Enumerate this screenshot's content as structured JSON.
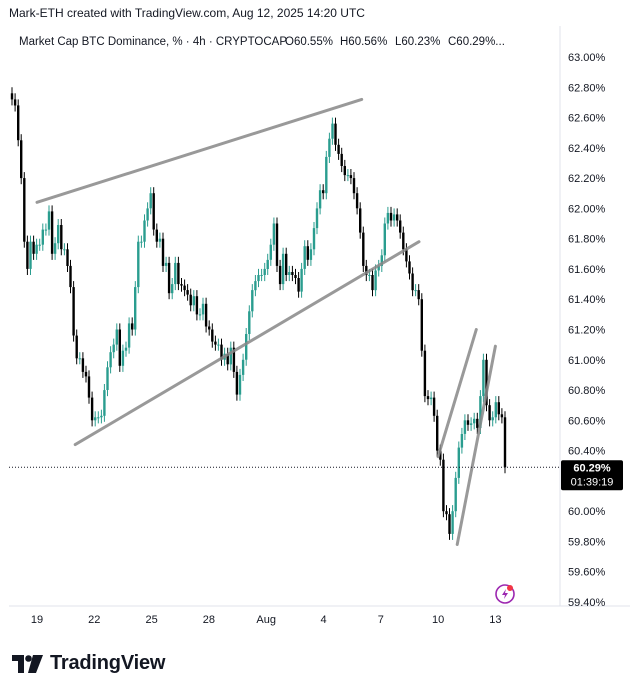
{
  "credit": "Mark-ETH created with TradingView.com, Aug 12, 2025 14:20 UTC",
  "brand": "TradingView",
  "chart_data": {
    "type": "candlestick",
    "title": "Market Cap BTC Dominance, % · 4h · CRYPTOCAP",
    "ohlc_header": {
      "open": "O60.55%",
      "high": "H60.56%",
      "low": "L60.23%",
      "close": "C60.29%..."
    },
    "y_unit": "%",
    "ylim": [
      59.4,
      63.0
    ],
    "y_ticks": [
      "63.00%",
      "62.80%",
      "62.60%",
      "62.40%",
      "62.20%",
      "62.00%",
      "61.80%",
      "61.60%",
      "61.40%",
      "61.20%",
      "61.00%",
      "60.80%",
      "60.60%",
      "60.40%",
      "60.00%",
      "59.80%",
      "59.60%",
      "59.40%"
    ],
    "x_ticks": [
      "19",
      "22",
      "25",
      "28",
      "Aug",
      "4",
      "7",
      "10",
      "13"
    ],
    "last_price": {
      "value": 60.29,
      "label": "60.29%",
      "countdown": "01:39:19"
    },
    "colors": {
      "up": "#2a9d8f",
      "down": "#000000",
      "trendline": "#888888",
      "label_bg": "#000000"
    },
    "closes": [
      62.72,
      62.68,
      62.45,
      62.2,
      61.78,
      61.6,
      61.78,
      61.7,
      61.76,
      61.76,
      61.86,
      61.86,
      61.98,
      61.7,
      61.77,
      61.89,
      61.73,
      61.73,
      61.62,
      61.48,
      61.16,
      61.01,
      61.01,
      60.92,
      60.89,
      60.75,
      60.6,
      60.62,
      60.62,
      60.63,
      60.8,
      60.95,
      61.05,
      61.1,
      61.2,
      60.96,
      61.06,
      61.08,
      61.24,
      61.2,
      61.48,
      61.78,
      61.78,
      61.92,
      62.0,
      62.1,
      61.86,
      61.78,
      61.8,
      61.62,
      61.64,
      61.44,
      61.5,
      61.64,
      61.5,
      61.49,
      61.46,
      61.43,
      61.36,
      61.42,
      61.3,
      61.3,
      61.37,
      61.22,
      61.2,
      61.12,
      61.1,
      61.1,
      61.0,
      61.04,
      60.97,
      61.08,
      60.92,
      60.77,
      60.9,
      61.0,
      61.17,
      61.32,
      61.46,
      61.52,
      61.56,
      61.56,
      61.6,
      61.66,
      61.76,
      61.9,
      61.62,
      61.5,
      61.7,
      61.56,
      61.58,
      61.56,
      61.54,
      61.45,
      61.6,
      61.75,
      61.66,
      61.73,
      61.87,
      62.0,
      62.12,
      62.1,
      62.34,
      62.46,
      62.56,
      62.42,
      62.36,
      62.28,
      62.22,
      62.22,
      62.2,
      62.1,
      62.0,
      61.84,
      61.62,
      61.56,
      61.56,
      61.46,
      61.59,
      61.62,
      61.69,
      61.9,
      61.97,
      61.92,
      61.96,
      61.92,
      61.84,
      61.73,
      61.65,
      61.57,
      61.46,
      61.46,
      61.4,
      61.06,
      60.76,
      60.74,
      60.75,
      60.63,
      60.4,
      60.34,
      60.0,
      59.98,
      59.85,
      60.0,
      60.22,
      60.42,
      60.51,
      60.6,
      60.57,
      60.58,
      60.61,
      60.55,
      60.76,
      61.0,
      60.7,
      60.6,
      60.62,
      60.72,
      60.64,
      60.62,
      60.29
    ],
    "trendlines": [
      {
        "from": [
          "Jul 19",
          62.04
        ],
        "to": [
          "Aug 5",
          62.72
        ]
      },
      {
        "from": [
          "Jul 21",
          60.44
        ],
        "to": [
          "Aug 8",
          61.78
        ]
      },
      {
        "from": [
          "Aug 9",
          60.36
        ],
        "to": [
          "Aug 11",
          61.2
        ]
      },
      {
        "from": [
          "Aug 10",
          59.78
        ],
        "to": [
          "Aug 12",
          61.09
        ]
      }
    ]
  }
}
